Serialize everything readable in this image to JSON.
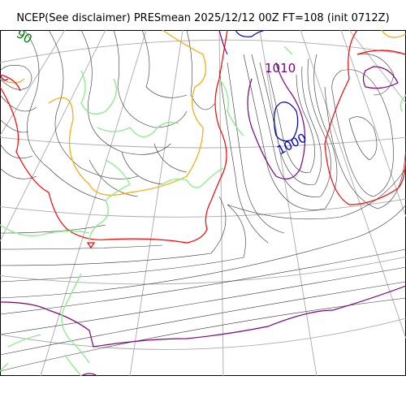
{
  "title": "NCEP(See disclaimer) PRESmean 2025/12/12 00Z FT=108 (init 0712Z)",
  "contour_labels": [
    {
      "text": "1010",
      "color": "#800080"
    },
    {
      "text": "1000",
      "color": "#0000cc"
    },
    {
      "text": "90",
      "color": "#008000"
    }
  ],
  "colors": {
    "isobar": "#333333",
    "isobar_1010": "#800080",
    "isobar_1000": "#0000cc",
    "isobar_1020": "#ff0000",
    "isobar_orange": "#ffa500",
    "coastline": "#90ee90",
    "graticule": "#aaaaaa"
  }
}
